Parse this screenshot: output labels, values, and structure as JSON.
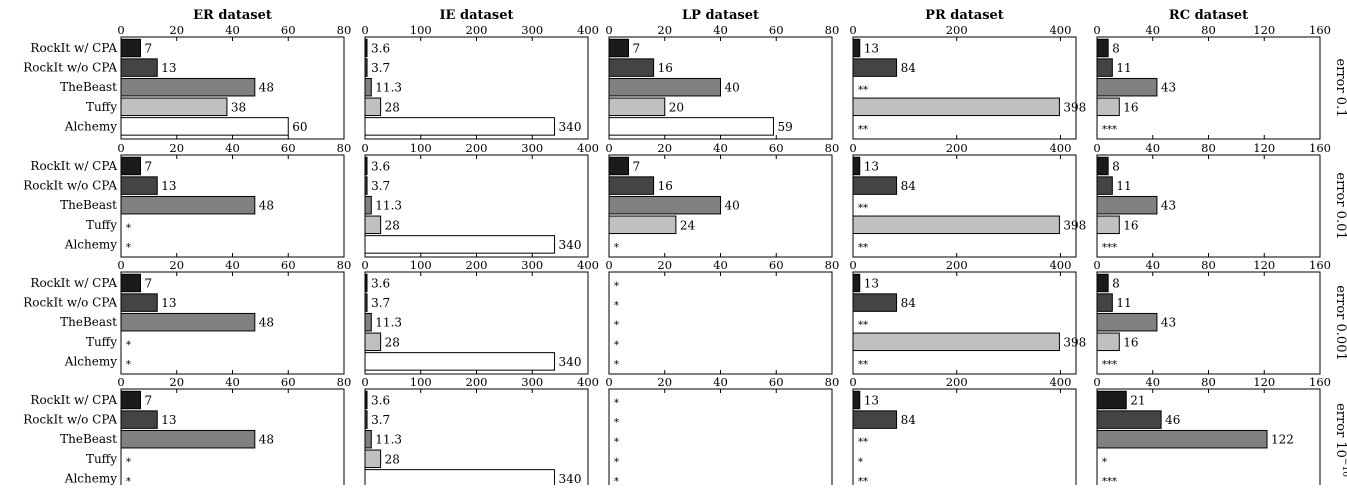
{
  "chart_data": {
    "type": "bar",
    "orientation": "horizontal",
    "layout": "small-multiples grid (4 rows x 5 columns)",
    "systems": [
      "RockIt w/ CPA",
      "RockIt w/o CPA",
      "TheBeast",
      "Tuffy",
      "Alchemy"
    ],
    "colors": [
      "#1a1a1a",
      "#444444",
      "#808080",
      "#c0c0c0",
      "#ffffff"
    ],
    "datasets": [
      {
        "title": "ER dataset",
        "xlim": [
          0,
          80
        ],
        "ticks": [
          "0",
          "20",
          "40",
          "60",
          "80"
        ]
      },
      {
        "title": "IE dataset",
        "xlim": [
          0,
          400
        ],
        "ticks": [
          "0",
          "100",
          "200",
          "300",
          "400"
        ]
      },
      {
        "title": "LP dataset",
        "xlim": [
          0,
          80
        ],
        "ticks": [
          "0",
          "20",
          "40",
          "60",
          "80"
        ]
      },
      {
        "title": "PR dataset",
        "xlim": [
          0,
          430
        ],
        "ticks": [
          "0",
          "200",
          "400"
        ]
      },
      {
        "title": "RC dataset",
        "xlim": [
          0,
          160
        ],
        "ticks": [
          "0",
          "40",
          "80",
          "120",
          "160"
        ]
      }
    ],
    "error_levels": [
      {
        "label": "error 0.1"
      },
      {
        "label": "error 0.01"
      },
      {
        "label": "error 0.001"
      },
      {
        "label": "error 10",
        "superscript": "−10"
      }
    ],
    "values": [
      [
        [
          [
            7,
            "7"
          ],
          [
            13,
            "13"
          ],
          [
            48,
            "48"
          ],
          [
            38,
            "38"
          ],
          [
            60,
            "60"
          ]
        ],
        [
          [
            3.6,
            "3.6"
          ],
          [
            3.7,
            "3.7"
          ],
          [
            11.3,
            "11.3"
          ],
          [
            28,
            "28"
          ],
          [
            340,
            "340"
          ]
        ],
        [
          [
            7,
            "7"
          ],
          [
            16,
            "16"
          ],
          [
            40,
            "40"
          ],
          [
            20,
            "20"
          ],
          [
            59,
            "59"
          ]
        ],
        [
          [
            13,
            "13"
          ],
          [
            84,
            "84"
          ],
          [
            null,
            "**"
          ],
          [
            398,
            "398"
          ],
          [
            null,
            "**"
          ]
        ],
        [
          [
            8,
            "8"
          ],
          [
            11,
            "11"
          ],
          [
            43,
            "43"
          ],
          [
            16,
            "16"
          ],
          [
            null,
            "***"
          ]
        ]
      ],
      [
        [
          [
            7,
            "7"
          ],
          [
            13,
            "13"
          ],
          [
            48,
            "48"
          ],
          [
            null,
            "*"
          ],
          [
            null,
            "*"
          ]
        ],
        [
          [
            3.6,
            "3.6"
          ],
          [
            3.7,
            "3.7"
          ],
          [
            11.3,
            "11.3"
          ],
          [
            28,
            "28"
          ],
          [
            340,
            "340"
          ]
        ],
        [
          [
            7,
            "7"
          ],
          [
            16,
            "16"
          ],
          [
            40,
            "40"
          ],
          [
            24,
            "24"
          ],
          [
            null,
            "*"
          ]
        ],
        [
          [
            13,
            "13"
          ],
          [
            84,
            "84"
          ],
          [
            null,
            "**"
          ],
          [
            398,
            "398"
          ],
          [
            null,
            "**"
          ]
        ],
        [
          [
            8,
            "8"
          ],
          [
            11,
            "11"
          ],
          [
            43,
            "43"
          ],
          [
            16,
            "16"
          ],
          [
            null,
            "***"
          ]
        ]
      ],
      [
        [
          [
            7,
            "7"
          ],
          [
            13,
            "13"
          ],
          [
            48,
            "48"
          ],
          [
            null,
            "*"
          ],
          [
            null,
            "*"
          ]
        ],
        [
          [
            3.6,
            "3.6"
          ],
          [
            3.7,
            "3.7"
          ],
          [
            11.3,
            "11.3"
          ],
          [
            28,
            "28"
          ],
          [
            340,
            "340"
          ]
        ],
        [
          [
            null,
            "*"
          ],
          [
            null,
            "*"
          ],
          [
            null,
            "*"
          ],
          [
            null,
            "*"
          ],
          [
            null,
            "*"
          ]
        ],
        [
          [
            13,
            "13"
          ],
          [
            84,
            "84"
          ],
          [
            null,
            "**"
          ],
          [
            398,
            "398"
          ],
          [
            null,
            "**"
          ]
        ],
        [
          [
            8,
            "8"
          ],
          [
            11,
            "11"
          ],
          [
            43,
            "43"
          ],
          [
            16,
            "16"
          ],
          [
            null,
            "***"
          ]
        ]
      ],
      [
        [
          [
            7,
            "7"
          ],
          [
            13,
            "13"
          ],
          [
            48,
            "48"
          ],
          [
            null,
            "*"
          ],
          [
            null,
            "*"
          ]
        ],
        [
          [
            3.6,
            "3.6"
          ],
          [
            3.7,
            "3.7"
          ],
          [
            11.3,
            "11.3"
          ],
          [
            28,
            "28"
          ],
          [
            340,
            "340"
          ]
        ],
        [
          [
            null,
            "*"
          ],
          [
            null,
            "*"
          ],
          [
            null,
            "*"
          ],
          [
            null,
            "*"
          ],
          [
            null,
            "*"
          ]
        ],
        [
          [
            13,
            "13"
          ],
          [
            84,
            "84"
          ],
          [
            null,
            "**"
          ],
          [
            null,
            "*"
          ],
          [
            null,
            "**"
          ]
        ],
        [
          [
            21,
            "21"
          ],
          [
            46,
            "46"
          ],
          [
            122,
            "122"
          ],
          [
            null,
            "*"
          ],
          [
            null,
            "***"
          ]
        ]
      ]
    ]
  }
}
